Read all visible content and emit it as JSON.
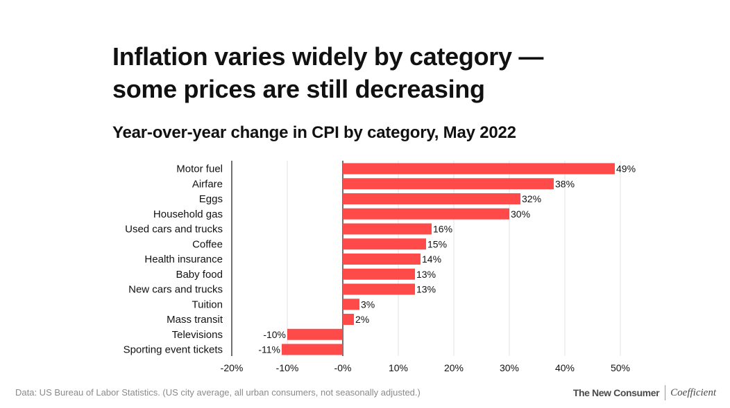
{
  "title_lines": [
    "Inflation varies widely by category —",
    "some prices are still decreasing"
  ],
  "subtitle": "Year-over-year change in CPI by category, May 2022",
  "source": "Data: US Bureau of Labor Statistics. (US city average, all urban consumers, not seasonally adjusted.)",
  "brand": {
    "primary": "The New Consumer",
    "secondary": "Coefficient"
  },
  "colors": {
    "bar": "#ff4a4a",
    "grid": "#e3e3e3",
    "baseline": "#222222",
    "text": "#111111"
  },
  "chart_data": {
    "type": "bar",
    "orientation": "horizontal",
    "categories": [
      "Motor fuel",
      "Airfare",
      "Eggs",
      "Household gas",
      "Used cars and trucks",
      "Coffee",
      "Health insurance",
      "Baby food",
      "New cars and trucks",
      "Tuition",
      "Mass transit",
      "Televisions",
      "Sporting event tickets"
    ],
    "values": [
      49,
      38,
      32,
      30,
      16,
      15,
      14,
      13,
      13,
      3,
      2,
      -10,
      -11
    ],
    "data_labels": [
      "49%",
      "38%",
      "32%",
      "30%",
      "16%",
      "15%",
      "14%",
      "13%",
      "13%",
      "3%",
      "2%",
      "-10%",
      "-11%"
    ],
    "x_ticks": [
      -20,
      -10,
      0,
      10,
      20,
      30,
      40,
      50
    ],
    "x_tick_labels": [
      "-20%",
      "-10%",
      "-0%",
      "10%",
      "20%",
      "30%",
      "40%",
      "50%"
    ],
    "xlim": [
      -20,
      50
    ],
    "xlabel": "",
    "ylabel": "",
    "grid": true,
    "legend": "none"
  }
}
